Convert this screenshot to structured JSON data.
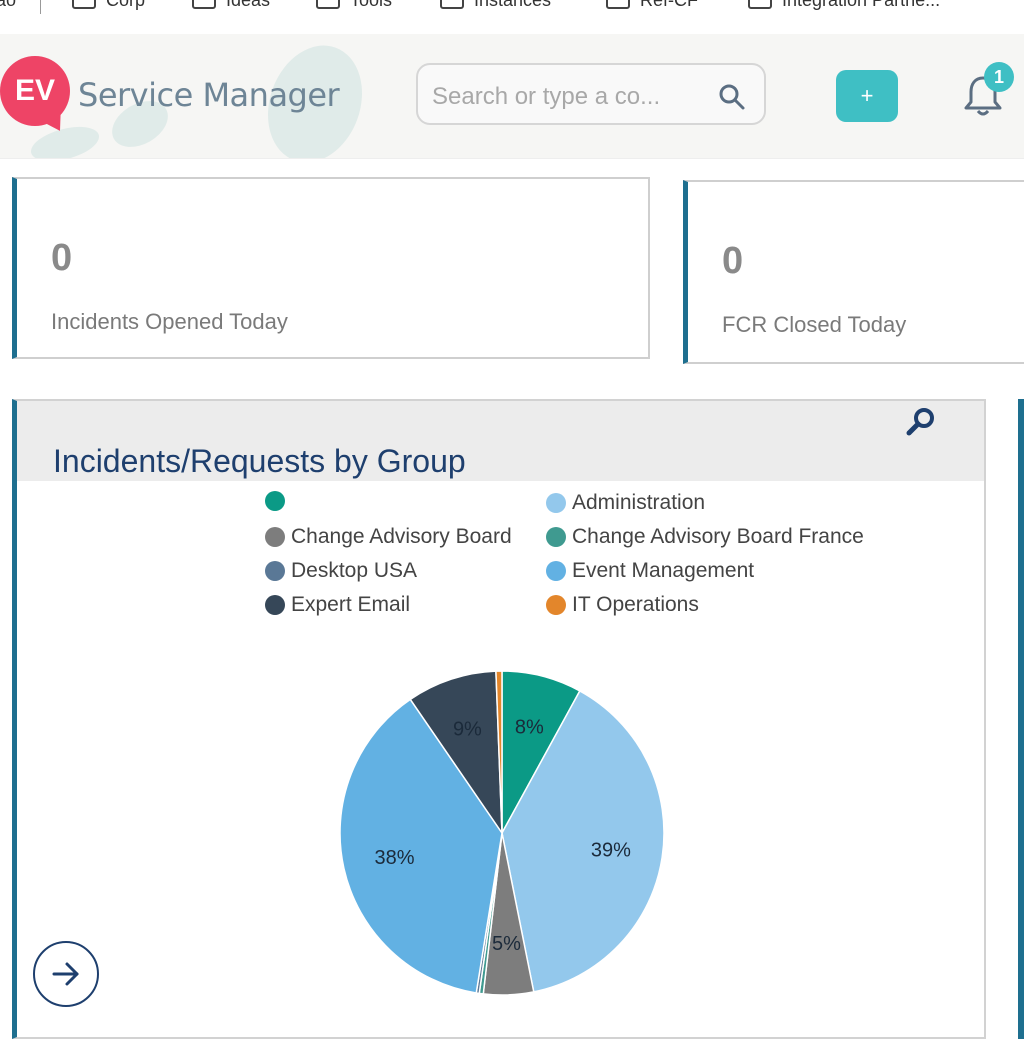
{
  "bookmarks": {
    "cut_label": "ao",
    "items": [
      {
        "label": "Corp"
      },
      {
        "label": "Ideas"
      },
      {
        "label": "Tools"
      },
      {
        "label": "Instances"
      },
      {
        "label": "Ref-CF"
      },
      {
        "label": "Integration Partne..."
      }
    ]
  },
  "header": {
    "logo_text": "EV",
    "app_title": "Service Manager",
    "search_placeholder": "Search or type a co...",
    "add_label": "+",
    "notification_count": "1",
    "colors": {
      "brand": "#ee4466",
      "accent": "#3fbfc4",
      "title": "#6e8596"
    }
  },
  "stats": [
    {
      "value": "0",
      "label": "Incidents Opened Today"
    },
    {
      "value": "0",
      "label": "FCR Closed Today"
    }
  ],
  "widget": {
    "title": "Incidents/Requests by Group",
    "zoom_icon": "zoom-icon",
    "next_icon": "arrow-right-icon"
  },
  "chart_data": {
    "type": "pie",
    "title": "Incidents/Requests by Group",
    "legend_position": "top",
    "slices": [
      {
        "name": "",
        "value": 8,
        "label": "8%",
        "color": "#0b9a86"
      },
      {
        "name": "Administration",
        "value": 39,
        "label": "39%",
        "color": "#93c8ec"
      },
      {
        "name": "Change Advisory Board",
        "value": 5,
        "label": "5%",
        "color": "#7d7d7d"
      },
      {
        "name": "Change Advisory Board France",
        "value": 0.4,
        "label": "",
        "color": "#3f9a90"
      },
      {
        "name": "Desktop USA",
        "value": 0.3,
        "label": "",
        "color": "#5a7896"
      },
      {
        "name": "Event Management",
        "value": 38,
        "label": "38%",
        "color": "#62b1e3"
      },
      {
        "name": "Expert Email",
        "value": 9,
        "label": "9%",
        "color": "#364758"
      },
      {
        "name": "IT Operations",
        "value": 0.6,
        "label": "",
        "color": "#e3862b"
      }
    ]
  }
}
